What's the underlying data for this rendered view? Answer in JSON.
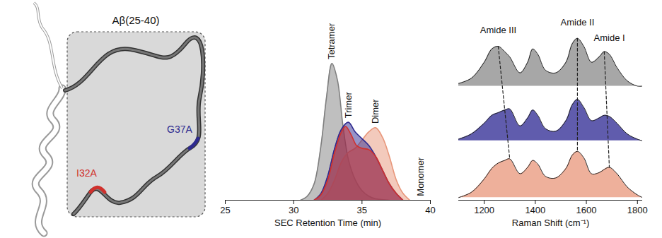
{
  "diagram": {
    "label": "Aβ(25-40)",
    "mutations": [
      {
        "label": "I32A",
        "color": "#d0312d"
      },
      {
        "label": "G37A",
        "color": "#2e2a8f"
      }
    ]
  },
  "chart_data": [
    {
      "type": "area",
      "xlabel": "SEC Retention Time (min)",
      "xlim": [
        25,
        40
      ],
      "xticks": [
        25,
        30,
        35,
        40
      ],
      "ylim": [
        0,
        1.1
      ],
      "tick_labels": "x",
      "series": [
        {
          "color": "#7f7f7f",
          "x": [
            30.5,
            31,
            31.5,
            32,
            32.4,
            32.8,
            33.2,
            33.6,
            34,
            34.5,
            35,
            35.5,
            36,
            37
          ],
          "values": [
            0,
            0.03,
            0.12,
            0.4,
            0.75,
            1.0,
            0.88,
            0.55,
            0.3,
            0.15,
            0.07,
            0.03,
            0.01,
            0
          ]
        },
        {
          "color": "#e8967a",
          "x": [
            32,
            32.5,
            33,
            33.5,
            34,
            34.5,
            35,
            35.5,
            36,
            36.5,
            37,
            37.5,
            38,
            38.5
          ],
          "values": [
            0,
            0.05,
            0.15,
            0.28,
            0.35,
            0.38,
            0.44,
            0.5,
            0.53,
            0.46,
            0.32,
            0.15,
            0.05,
            0
          ]
        },
        {
          "color": "#2e2a8f",
          "x": [
            31.5,
            32,
            32.5,
            33,
            33.5,
            34,
            34.5,
            35,
            35.5,
            36,
            36.5,
            37,
            37.5,
            38
          ],
          "values": [
            0,
            0.05,
            0.18,
            0.38,
            0.52,
            0.57,
            0.5,
            0.45,
            0.4,
            0.32,
            0.22,
            0.12,
            0.05,
            0
          ]
        },
        {
          "color": "#d0312d",
          "x": [
            31.5,
            32,
            32.5,
            33,
            33.5,
            33.8,
            34.2,
            34.6,
            35,
            35.5,
            36,
            36.5,
            37,
            37.5,
            38
          ],
          "values": [
            0,
            0.04,
            0.15,
            0.35,
            0.5,
            0.54,
            0.48,
            0.4,
            0.38,
            0.37,
            0.32,
            0.22,
            0.12,
            0.05,
            0
          ]
        }
      ],
      "annotations": [
        {
          "text": "Tetramer",
          "x": 32.8,
          "y": 1.03
        },
        {
          "text": "Trimer",
          "x": 34,
          "y": 0.6
        },
        {
          "text": "Dimer",
          "x": 36,
          "y": 0.56
        },
        {
          "text": "Monomer",
          "x": 39.3,
          "y": 0.03
        }
      ]
    },
    {
      "type": "line",
      "xlabel": "Raman Shift (cm⁻¹)",
      "xlim": [
        1100,
        1820
      ],
      "xticks": [
        1200,
        1400,
        1600,
        1800
      ],
      "ylim": [
        0,
        3.5
      ],
      "tick_labels": "x",
      "x": [
        1100,
        1150,
        1200,
        1230,
        1255,
        1280,
        1300,
        1340,
        1370,
        1390,
        1410,
        1440,
        1480,
        1520,
        1545,
        1565,
        1590,
        1620,
        1650,
        1670,
        1690,
        1720,
        1760,
        1800,
        1820
      ],
      "series": [
        {
          "color": "#8a8a8a",
          "values": [
            2.2,
            2.3,
            2.6,
            2.85,
            2.9,
            2.8,
            2.7,
            2.4,
            2.6,
            2.85,
            2.75,
            2.45,
            2.4,
            2.6,
            2.95,
            3.05,
            2.9,
            2.6,
            2.7,
            2.8,
            2.75,
            2.5,
            2.25,
            2.15,
            2.15
          ]
        },
        {
          "color": "#2b2591",
          "values": [
            1.15,
            1.25,
            1.45,
            1.6,
            1.65,
            1.7,
            1.72,
            1.4,
            1.55,
            1.7,
            1.6,
            1.35,
            1.3,
            1.5,
            1.8,
            1.9,
            1.75,
            1.5,
            1.55,
            1.6,
            1.58,
            1.45,
            1.25,
            1.15,
            1.12
          ]
        },
        {
          "color": "#e8967a",
          "values": [
            0.05,
            0.15,
            0.4,
            0.6,
            0.7,
            0.75,
            0.78,
            0.5,
            0.62,
            0.75,
            0.68,
            0.45,
            0.42,
            0.6,
            0.85,
            0.92,
            0.8,
            0.5,
            0.52,
            0.58,
            0.62,
            0.5,
            0.25,
            0.1,
            0.05
          ]
        }
      ],
      "line_style": "dashed",
      "peak_shifts": [
        [
          {
            "x": 1255,
            "y": 2.9
          },
          {
            "x": 1300,
            "y": 0.78
          }
        ],
        [
          {
            "x": 1565,
            "y": 3.05
          },
          {
            "x": 1565,
            "y": 0.92
          }
        ],
        [
          {
            "x": 1670,
            "y": 2.8
          },
          {
            "x": 1690,
            "y": 0.62
          }
        ]
      ],
      "annotations": [
        {
          "text": "Amide III",
          "x": 1255,
          "y": 3.2
        },
        {
          "text": "Amide II",
          "x": 1565,
          "y": 3.35
        },
        {
          "text": "Amide I",
          "x": 1690,
          "y": 3.05
        }
      ]
    }
  ]
}
